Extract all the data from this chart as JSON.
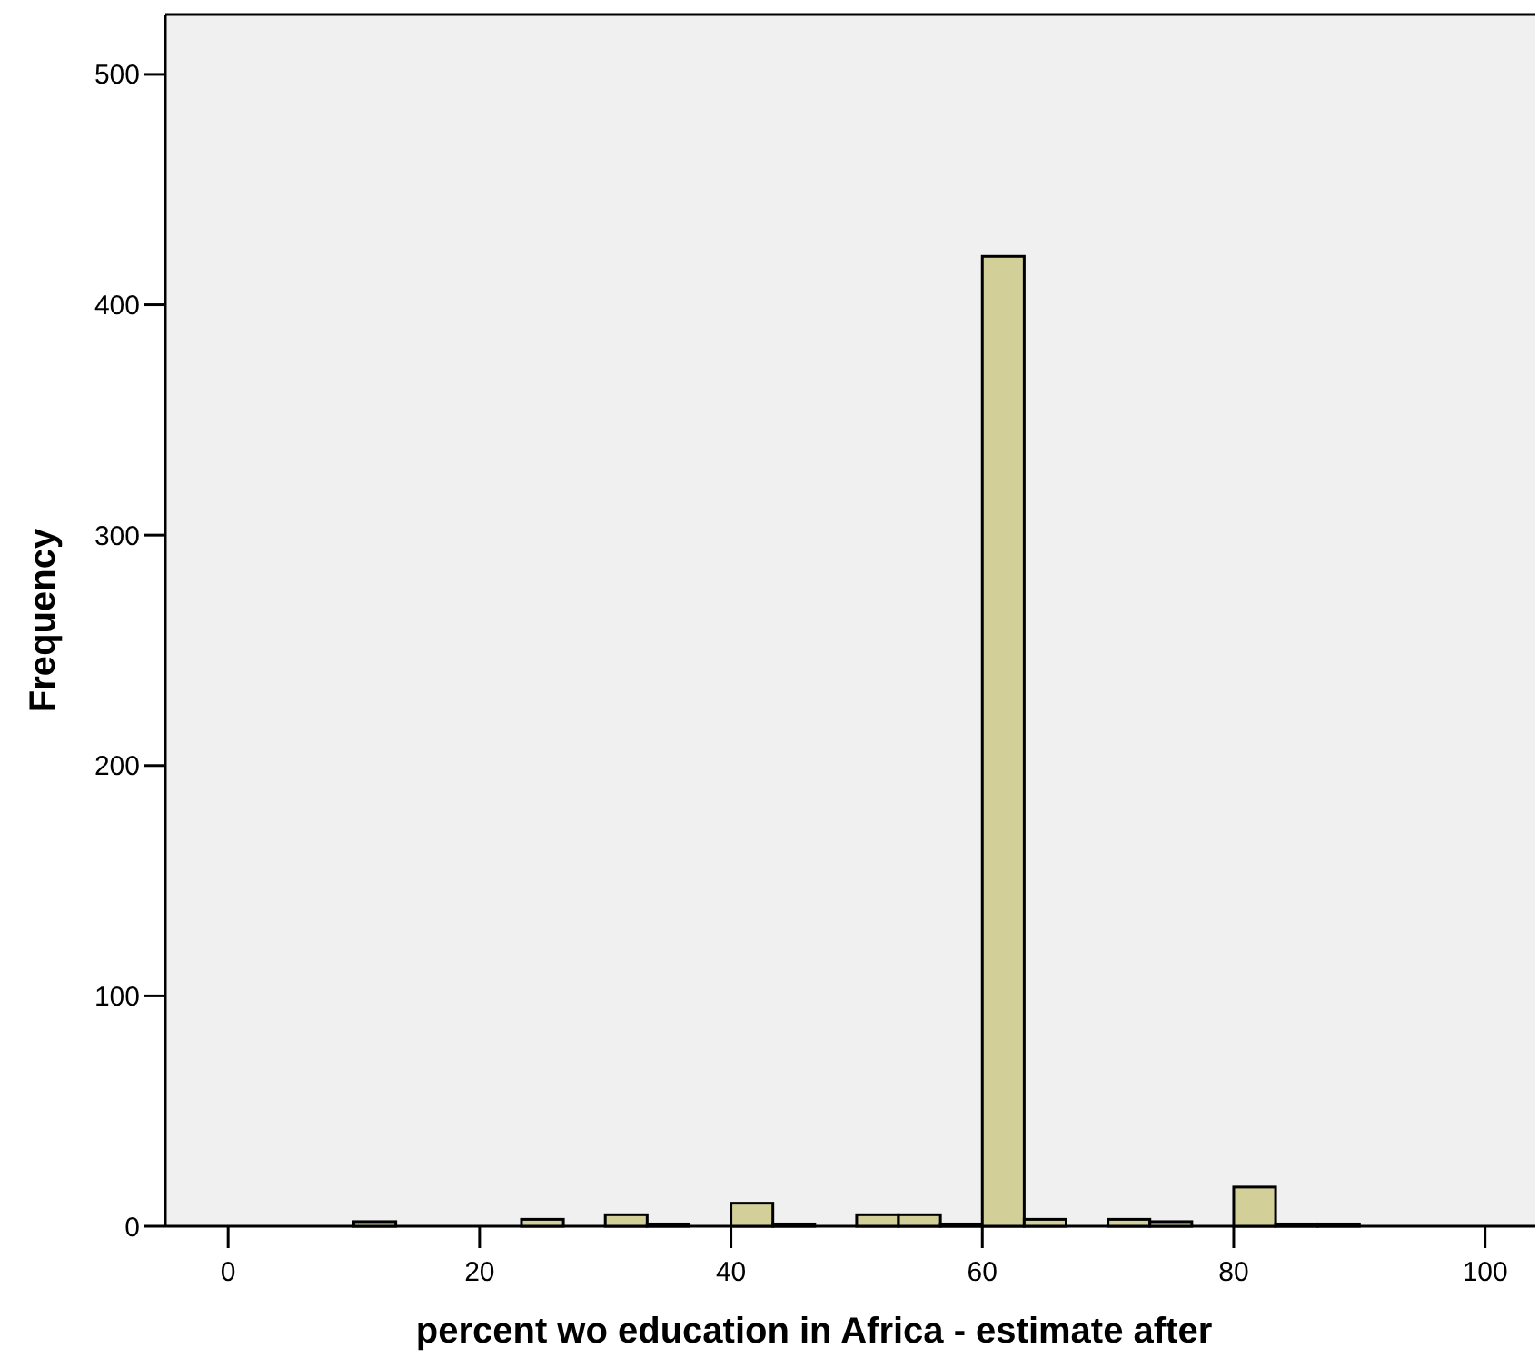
{
  "chart_data": {
    "type": "histogram",
    "xlabel": "percent wo education in Africa - estimate after",
    "ylabel": "Frequency",
    "bins": [
      0,
      3.333,
      6.667,
      10,
      13.333,
      16.667,
      20,
      23.333,
      26.667,
      30,
      33.333,
      36.667,
      40,
      43.333,
      46.667,
      50,
      53.333,
      56.667,
      60,
      63.333,
      66.667,
      70,
      73.333,
      76.667,
      80,
      83.333,
      86.667,
      90,
      93.333,
      96.667,
      100
    ],
    "values": [
      0,
      0,
      0,
      2,
      0,
      0,
      0,
      3,
      0,
      5,
      1,
      0,
      10,
      1,
      0,
      5,
      5,
      1,
      421,
      3,
      0,
      3,
      2,
      0,
      17,
      1,
      1,
      0,
      0,
      0
    ],
    "color": "#d2cf98",
    "xlim": [
      -5,
      104
    ],
    "ylim": [
      0,
      526
    ],
    "xticks": [
      0,
      20,
      40,
      60,
      80,
      100
    ],
    "yticks": [
      0,
      100,
      200,
      300,
      400,
      500
    ],
    "grid": false
  }
}
